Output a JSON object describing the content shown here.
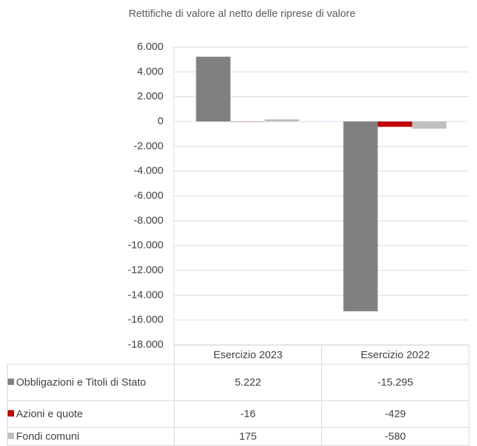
{
  "chart_data": {
    "type": "bar",
    "title": "Rettifiche di valore al netto delle riprese di valore",
    "categories": [
      "Esercizio 2023",
      "Esercizio 2022"
    ],
    "series": [
      {
        "name": "Obbligazioni e Titoli di Stato",
        "color": "#808080",
        "values": [
          5222,
          -15295
        ],
        "value_labels": [
          "5.222",
          "-15.295"
        ]
      },
      {
        "name": "Azioni e quote",
        "color": "#c00000",
        "values": [
          -16,
          -429
        ],
        "value_labels": [
          "-16",
          "-429"
        ]
      },
      {
        "name": "Fondi comuni",
        "color": "#bfbfbf",
        "values": [
          175,
          -580
        ],
        "value_labels": [
          "175",
          "-580"
        ]
      }
    ],
    "ylim": [
      -18000,
      6000
    ],
    "yticks": [
      {
        "value": 6000,
        "label": "6.000"
      },
      {
        "value": 4000,
        "label": "4.000"
      },
      {
        "value": 2000,
        "label": "2.000"
      },
      0,
      {
        "value": -2000,
        "label": "-2.000"
      },
      {
        "value": -4000,
        "label": "-4.000"
      },
      {
        "value": -6000,
        "label": "-6.000"
      },
      {
        "value": -8000,
        "label": "-8.000"
      },
      {
        "value": -10000,
        "label": "-10.000"
      },
      {
        "value": -12000,
        "label": "-12.000"
      },
      {
        "value": -14000,
        "label": "-14.000"
      },
      {
        "value": -16000,
        "label": "-16.000"
      },
      {
        "value": -18000,
        "label": "-18.000"
      }
    ],
    "grid": true
  }
}
